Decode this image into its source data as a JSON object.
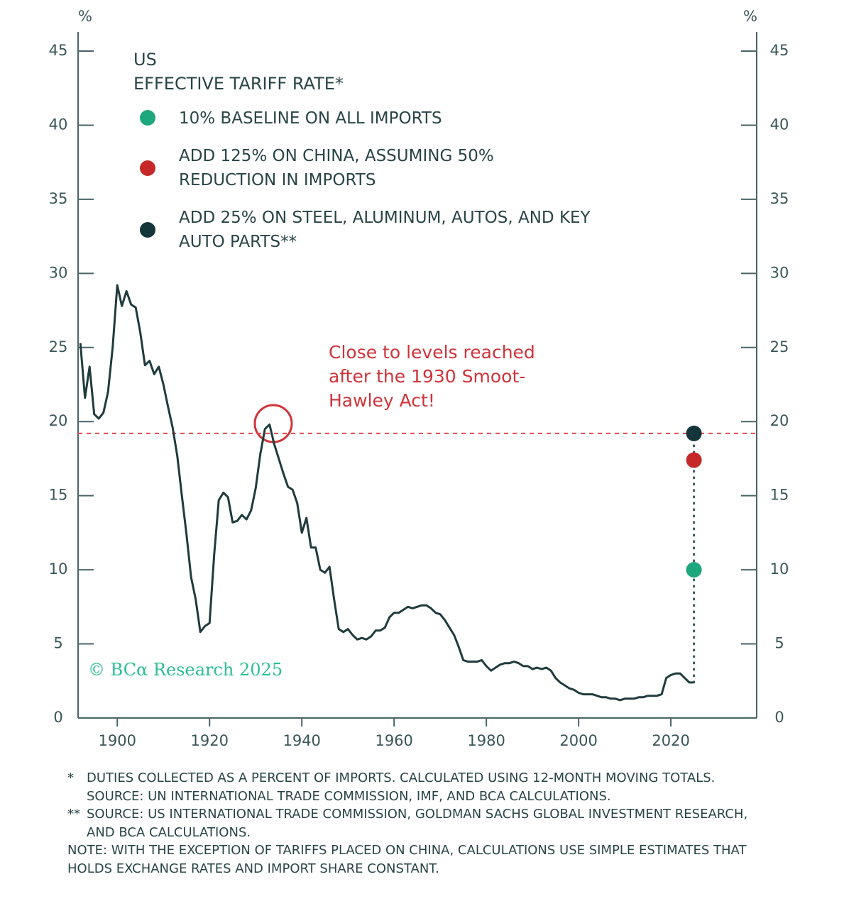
{
  "chart_data": {
    "type": "line",
    "title": "US",
    "subtitle": "EFFECTIVE TARIFF RATE*",
    "y_label": "%",
    "y2_label": "%",
    "annotation": "Close to levels reached after the 1930 Smoot-Hawley Act!",
    "watermark": "© BCα Research 2025",
    "xlim": [
      1891.5,
      2038.6
    ],
    "xticks": [
      1900,
      1920,
      1940,
      1960,
      1980,
      2000,
      2020
    ],
    "ylim": [
      0,
      45
    ],
    "yticks": [
      0,
      5,
      10,
      15,
      20,
      25,
      30,
      35,
      40,
      45
    ],
    "y2lim": [
      0,
      45
    ],
    "y2ticks": [
      0,
      5,
      10,
      15,
      20,
      25,
      30,
      35,
      40,
      45
    ],
    "x": [
      1892,
      1893,
      1894,
      1895,
      1896,
      1897,
      1898,
      1899,
      1900,
      1901,
      1902,
      1903,
      1904,
      1905,
      1906,
      1907,
      1908,
      1909,
      1910,
      1911,
      1912,
      1913,
      1914,
      1915,
      1916,
      1917,
      1918,
      1919,
      1920,
      1921,
      1922,
      1923,
      1924,
      1925,
      1926,
      1927,
      1928,
      1929,
      1930,
      1931,
      1932,
      1933,
      1934,
      1935,
      1936,
      1937,
      1938,
      1939,
      1940,
      1941,
      1942,
      1943,
      1944,
      1945,
      1946,
      1947,
      1948,
      1949,
      1950,
      1951,
      1952,
      1953,
      1954,
      1955,
      1956,
      1957,
      1958,
      1959,
      1960,
      1961,
      1962,
      1963,
      1964,
      1965,
      1966,
      1967,
      1968,
      1969,
      1970,
      1971,
      1972,
      1973,
      1974,
      1975,
      1976,
      1977,
      1978,
      1979,
      1980,
      1981,
      1982,
      1983,
      1984,
      1985,
      1986,
      1987,
      1988,
      1989,
      1990,
      1991,
      1992,
      1993,
      1994,
      1995,
      1996,
      1997,
      1998,
      1999,
      2000,
      2001,
      2002,
      2003,
      2004,
      2005,
      2006,
      2007,
      2008,
      2009,
      2010,
      2011,
      2012,
      2013,
      2014,
      2015,
      2016,
      2017,
      2018,
      2019,
      2020,
      2021,
      2022,
      2023,
      2024,
      2025
    ],
    "series": [
      {
        "color": "#1f3b3d",
        "values": [
          25.3,
          21.6,
          23.7,
          20.5,
          20.2,
          20.6,
          22,
          25,
          29.2,
          27.8,
          28.8,
          27.9,
          27.7,
          26,
          23.8,
          24.1,
          23.2,
          23.7,
          22.5,
          21,
          19.6,
          17.7,
          15,
          12.4,
          9.5,
          8,
          5.8,
          6.2,
          6.4,
          11,
          14.7,
          15.2,
          14.9,
          13.2,
          13.3,
          13.7,
          13.4,
          14,
          15.5,
          17.8,
          19.5,
          19.8,
          18.5,
          17.5,
          16.5,
          15.6,
          15.4,
          14.5,
          12.5,
          13.5,
          11.5,
          11.5,
          10,
          9.8,
          10.2,
          8,
          6,
          5.8,
          6,
          5.6,
          5.3,
          5.4,
          5.3,
          5.5,
          5.9,
          5.9,
          6.1,
          6.8,
          7.1,
          7.1,
          7.3,
          7.5,
          7.4,
          7.5,
          7.6,
          7.6,
          7.4,
          7.1,
          7,
          6.6,
          6.1,
          5.6,
          4.8,
          3.9,
          3.8,
          3.8,
          3.8,
          3.9,
          3.5,
          3.2,
          3.4,
          3.6,
          3.7,
          3.7,
          3.8,
          3.7,
          3.5,
          3.5,
          3.3,
          3.4,
          3.3,
          3.4,
          3.2,
          2.7,
          2.4,
          2.2,
          2,
          1.9,
          1.7,
          1.6,
          1.6,
          1.6,
          1.5,
          1.4,
          1.4,
          1.3,
          1.3,
          1.2,
          1.3,
          1.3,
          1.3,
          1.4,
          1.4,
          1.5,
          1.5,
          1.5,
          1.6,
          2.7,
          2.9,
          3,
          3,
          2.7,
          2.4,
          2.4
        ]
      }
    ],
    "scenarios": [
      {
        "name": "10% BASELINE ON ALL IMPORTS",
        "color": "#1ea67d",
        "x": 2025,
        "value": 10
      },
      {
        "name": "ADD 125% ON CHINA, ASSUMING 50% REDUCTION IN IMPORTS",
        "color": "#c62828",
        "x": 2025,
        "value": 17.4
      },
      {
        "name": "ADD 25% ON STEEL, ALUMINUM, AUTOS, AND KEY AUTO PARTS**",
        "color": "#14353a",
        "x": 2025,
        "value": 19.2
      }
    ],
    "footnotes": [
      {
        "marker": "*",
        "text": "DUTIES COLLECTED AS A PERCENT OF IMPORTS. CALCULATED USING 12-MONTH MOVING TOTALS. SOURCE: UN INTERNATIONAL TRADE COMMISSION, IMF, AND BCA CALCULATIONS."
      },
      {
        "marker": "**",
        "text": "SOURCE: US INTERNATIONAL TRADE COMMISSION, GOLDMAN SACHS GLOBAL INVESTMENT RESEARCH, AND BCA CALCULATIONS."
      },
      {
        "text": "NOTE: WITH THE EXCEPTION OF TARIFFS PLACED ON CHINA, CALCULATIONS USE SIMPLE ESTIMATES THAT HOLDS EXCHANGE RATES AND IMPORT SHARE CONSTANT."
      }
    ]
  }
}
